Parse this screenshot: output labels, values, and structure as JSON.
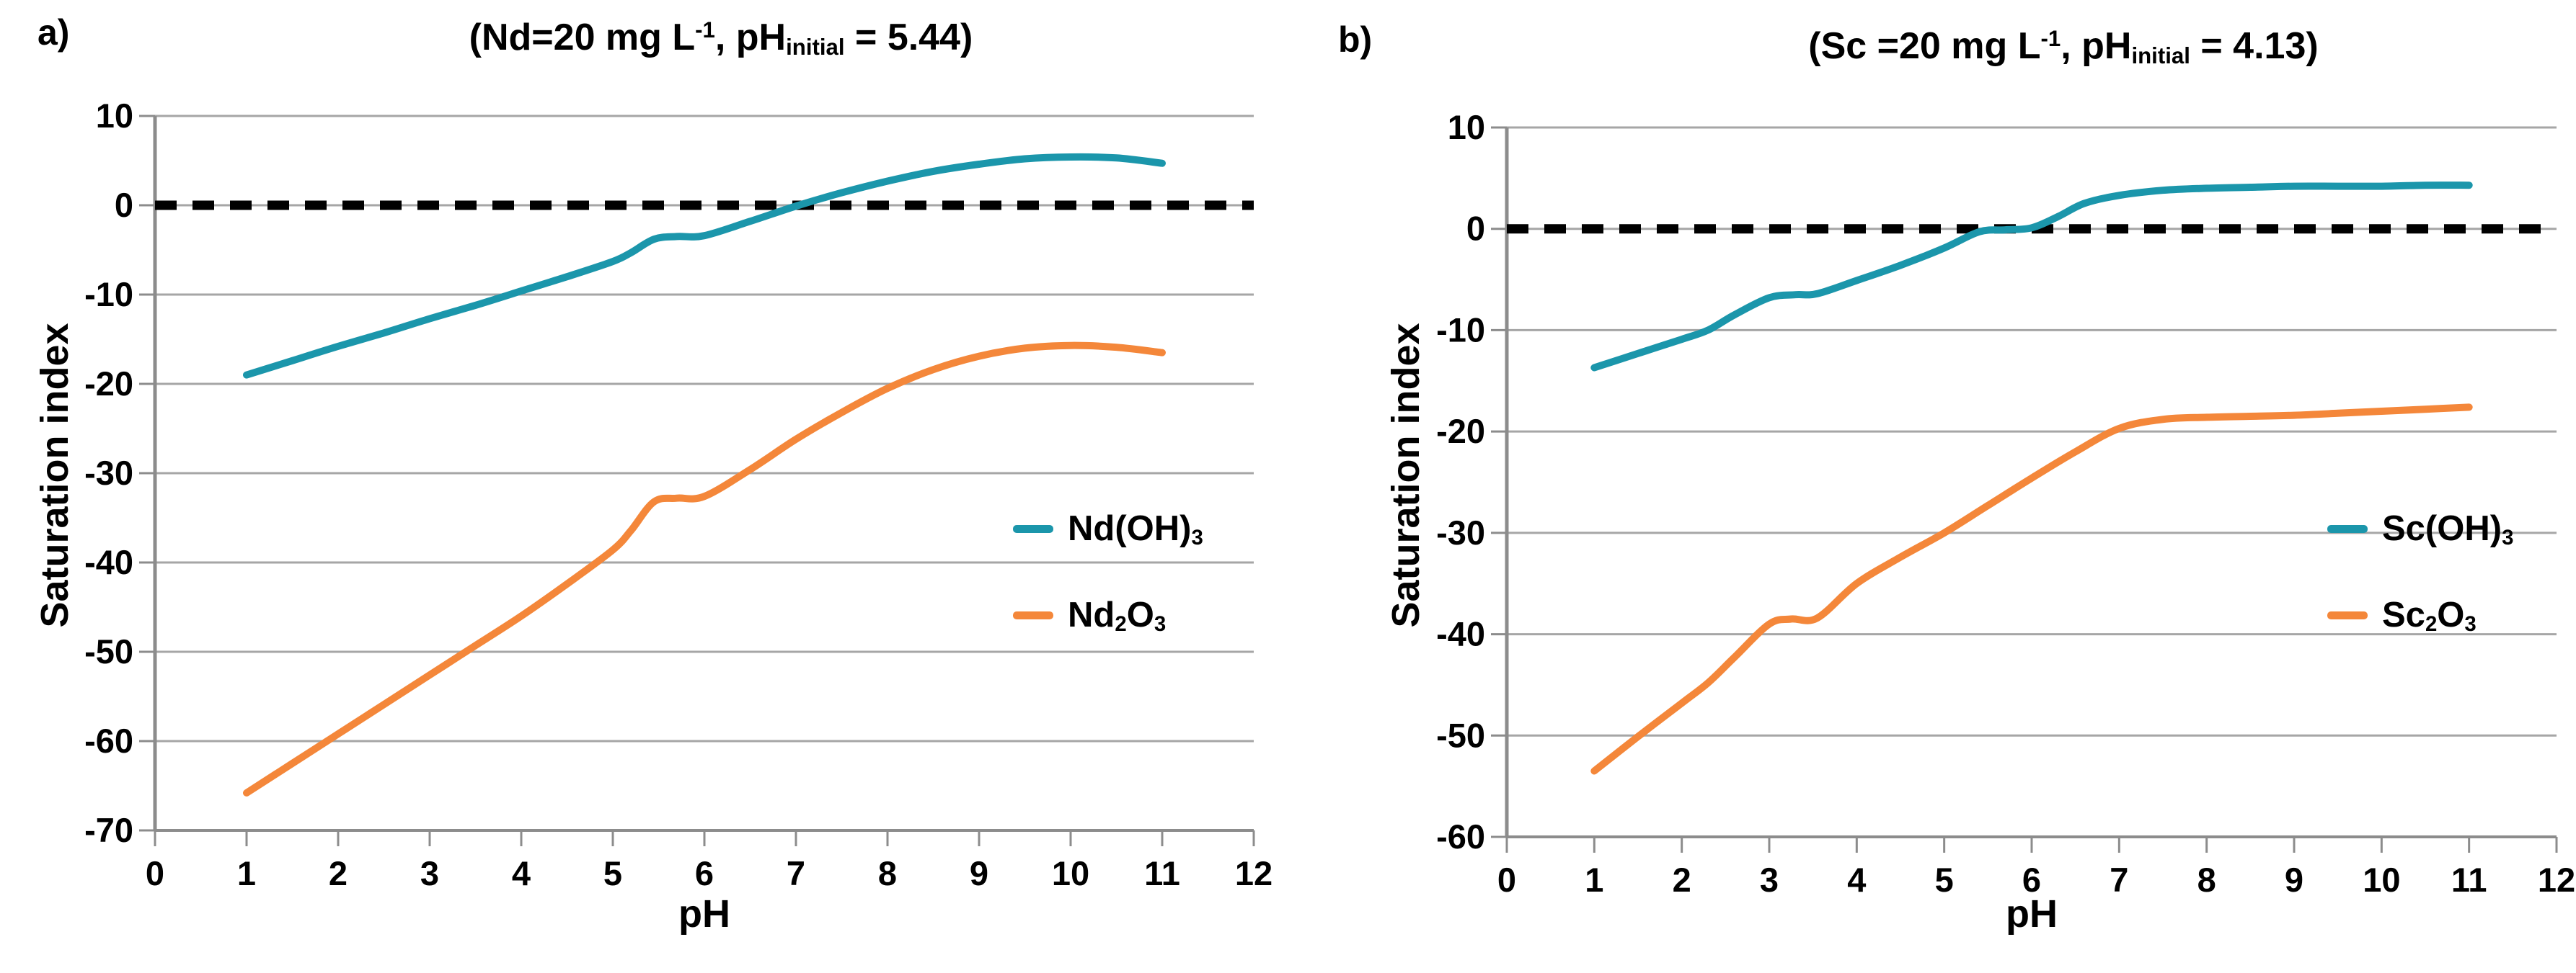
{
  "figure": {
    "background": "#ffffff",
    "grid_color": "#a6a6a6",
    "axis_color": "#8c8c8c",
    "zero_line_color": "#000000",
    "series_colors": {
      "hydroxide": "#1b96ab",
      "oxide": "#f4873a"
    }
  },
  "chart_data": [
    {
      "type": "line",
      "panel_letter": "a)",
      "title": "(Nd=20 mg L⁻¹, pH_initial = 5.44)",
      "title_parts": [
        {
          "t": "(Nd=20 mg L"
        },
        {
          "t": "-1",
          "sup": true
        },
        {
          "t": ", pH"
        },
        {
          "t": "initial",
          "sub": true
        },
        {
          "t": " = 5.44)"
        }
      ],
      "xlabel": "pH",
      "ylabel": "Saturation index",
      "xlim": [
        0,
        12
      ],
      "ylim": [
        -70,
        10
      ],
      "x_ticks": [
        0,
        1,
        2,
        3,
        4,
        5,
        6,
        7,
        8,
        9,
        10,
        11,
        12
      ],
      "y_ticks": [
        10,
        0,
        -10,
        -20,
        -30,
        -40,
        -50,
        -60,
        -70
      ],
      "grid": "horizontal",
      "zero_reference_line": {
        "y": 0,
        "style": "dashed",
        "color": "#000000"
      },
      "legend_position": "inside-right-middle",
      "series": [
        {
          "name": "Nd(OH)3",
          "label_parts": [
            {
              "t": "Nd(OH)"
            },
            {
              "t": "3",
              "sub": true
            }
          ],
          "color": "#1b96ab",
          "points": [
            [
              1,
              -19.0
            ],
            [
              1.5,
              -17.4
            ],
            [
              2,
              -15.8
            ],
            [
              2.5,
              -14.3
            ],
            [
              3,
              -12.7
            ],
            [
              3.5,
              -11.2
            ],
            [
              4,
              -9.6
            ],
            [
              4.5,
              -8.0
            ],
            [
              5,
              -6.3
            ],
            [
              5.2,
              -5.3
            ],
            [
              5.45,
              -3.8
            ],
            [
              5.7,
              -3.5
            ],
            [
              6,
              -3.4
            ],
            [
              6.5,
              -1.8
            ],
            [
              7,
              -0.1
            ],
            [
              7.5,
              1.4
            ],
            [
              8,
              2.7
            ],
            [
              8.5,
              3.8
            ],
            [
              9,
              4.6
            ],
            [
              9.5,
              5.2
            ],
            [
              10,
              5.4
            ],
            [
              10.5,
              5.3
            ],
            [
              11,
              4.7
            ]
          ]
        },
        {
          "name": "Nd2O3",
          "label_parts": [
            {
              "t": "Nd"
            },
            {
              "t": "2",
              "sub": true
            },
            {
              "t": "O"
            },
            {
              "t": "3",
              "sub": true
            }
          ],
          "color": "#f4873a",
          "points": [
            [
              1,
              -65.8
            ],
            [
              1.5,
              -62.5
            ],
            [
              2,
              -59.2
            ],
            [
              2.5,
              -55.9
            ],
            [
              3,
              -52.6
            ],
            [
              3.5,
              -49.3
            ],
            [
              4,
              -46.0
            ],
            [
              4.5,
              -42.4
            ],
            [
              5,
              -38.6
            ],
            [
              5.2,
              -36.4
            ],
            [
              5.45,
              -33.2
            ],
            [
              5.7,
              -32.8
            ],
            [
              6,
              -32.6
            ],
            [
              6.5,
              -29.6
            ],
            [
              7,
              -26.2
            ],
            [
              7.5,
              -23.2
            ],
            [
              8,
              -20.5
            ],
            [
              8.5,
              -18.4
            ],
            [
              9,
              -16.9
            ],
            [
              9.5,
              -16.0
            ],
            [
              10,
              -15.7
            ],
            [
              10.5,
              -15.9
            ],
            [
              11,
              -16.5
            ]
          ]
        }
      ]
    },
    {
      "type": "line",
      "panel_letter": "b)",
      "title": "(Sc =20 mg L⁻¹, pH_initial = 4.13)",
      "title_parts": [
        {
          "t": "(Sc =20 mg L"
        },
        {
          "t": "-1",
          "sup": true
        },
        {
          "t": ", pH"
        },
        {
          "t": "initial",
          "sub": true
        },
        {
          "t": " = 4.13)"
        }
      ],
      "xlabel": "pH",
      "ylabel": "Saturation index",
      "xlim": [
        0,
        12
      ],
      "ylim": [
        -60,
        10
      ],
      "x_ticks": [
        0,
        1,
        2,
        3,
        4,
        5,
        6,
        7,
        8,
        9,
        10,
        11,
        12
      ],
      "y_ticks": [
        10,
        0,
        -10,
        -20,
        -30,
        -40,
        -50,
        -60
      ],
      "grid": "horizontal",
      "zero_reference_line": {
        "y": 0,
        "style": "dashed",
        "color": "#000000"
      },
      "legend_position": "inside-right-middle",
      "series": [
        {
          "name": "Sc(OH)3",
          "label_parts": [
            {
              "t": "Sc(OH)"
            },
            {
              "t": "3",
              "sub": true
            }
          ],
          "color": "#1b96ab",
          "points": [
            [
              1,
              -13.7
            ],
            [
              1.5,
              -12.3
            ],
            [
              2,
              -10.9
            ],
            [
              2.3,
              -10.0
            ],
            [
              2.6,
              -8.5
            ],
            [
              3,
              -6.8
            ],
            [
              3.3,
              -6.5
            ],
            [
              3.55,
              -6.4
            ],
            [
              4,
              -5.1
            ],
            [
              4.5,
              -3.6
            ],
            [
              5,
              -1.9
            ],
            [
              5.4,
              -0.3
            ],
            [
              5.7,
              -0.1
            ],
            [
              6,
              0.1
            ],
            [
              6.3,
              1.2
            ],
            [
              6.6,
              2.5
            ],
            [
              7,
              3.3
            ],
            [
              7.5,
              3.8
            ],
            [
              8,
              4.0
            ],
            [
              8.5,
              4.1
            ],
            [
              9,
              4.2
            ],
            [
              9.5,
              4.2
            ],
            [
              10,
              4.2
            ],
            [
              10.5,
              4.3
            ],
            [
              11,
              4.3
            ]
          ]
        },
        {
          "name": "Sc2O3",
          "label_parts": [
            {
              "t": "Sc"
            },
            {
              "t": "2",
              "sub": true
            },
            {
              "t": "O"
            },
            {
              "t": "3",
              "sub": true
            }
          ],
          "color": "#f4873a",
          "points": [
            [
              1,
              -53.5
            ],
            [
              1.5,
              -50.1
            ],
            [
              2,
              -46.8
            ],
            [
              2.3,
              -44.8
            ],
            [
              2.6,
              -42.3
            ],
            [
              3,
              -39.0
            ],
            [
              3.25,
              -38.5
            ],
            [
              3.55,
              -38.4
            ],
            [
              4,
              -35.0
            ],
            [
              4.5,
              -32.4
            ],
            [
              5,
              -30.0
            ],
            [
              5.5,
              -27.3
            ],
            [
              6,
              -24.6
            ],
            [
              6.5,
              -22.0
            ],
            [
              7,
              -19.7
            ],
            [
              7.5,
              -18.8
            ],
            [
              8,
              -18.6
            ],
            [
              8.5,
              -18.5
            ],
            [
              9,
              -18.4
            ],
            [
              9.5,
              -18.2
            ],
            [
              10,
              -18.0
            ],
            [
              10.5,
              -17.8
            ],
            [
              11,
              -17.6
            ]
          ]
        }
      ]
    }
  ]
}
